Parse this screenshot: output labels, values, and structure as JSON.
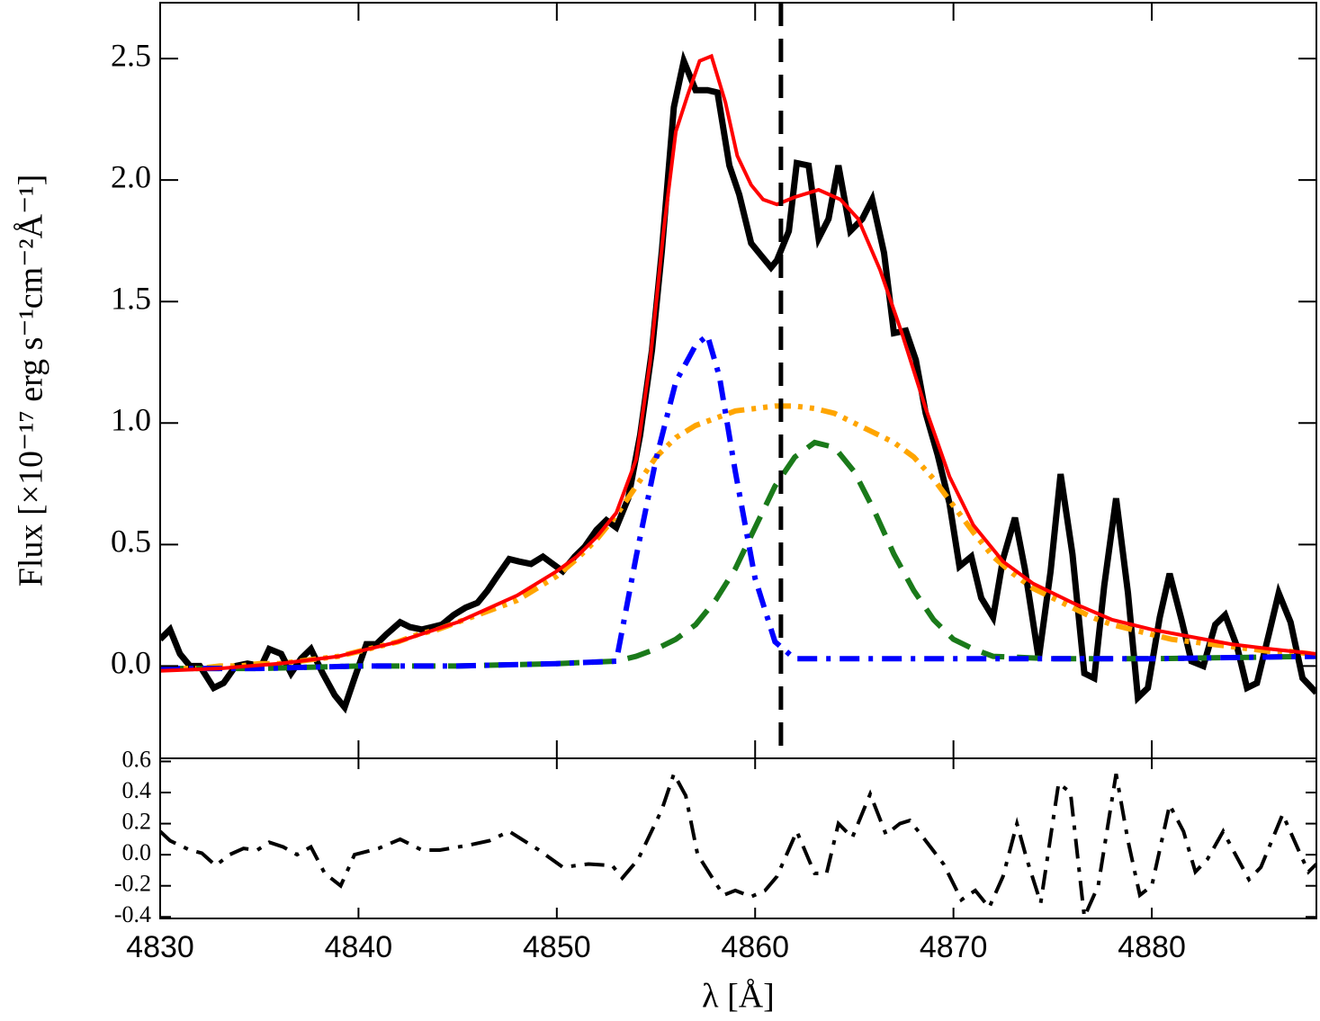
{
  "chart_data": [
    {
      "type": "line",
      "ylabel": "Flux [×10⁻¹⁷ erg s⁻¹cm⁻²Å⁻¹]",
      "xlim": [
        4830,
        4888.3
      ],
      "ylim": [
        -0.38,
        2.73
      ],
      "xticks": [
        4830,
        4840,
        4850,
        4860,
        4870,
        4880
      ],
      "xtick_labels": false,
      "yticks": [
        {
          "value": 0,
          "label": "0.0"
        },
        {
          "value": 0.5,
          "label": "0.5"
        },
        {
          "value": 1,
          "label": "1.0"
        },
        {
          "value": 1.5,
          "label": "1.5"
        },
        {
          "value": 2,
          "label": "2.0"
        },
        {
          "value": 2.5,
          "label": "2.5"
        }
      ],
      "reference_line": {
        "x": 4861.3,
        "style": "dashed",
        "color": "#000000"
      },
      "series": [
        {
          "color": "#000000",
          "style": "solid",
          "x": [
            4830.0,
            4830.5,
            4831.0,
            4831.5,
            4832.0,
            4832.7,
            4833.2,
            4833.8,
            4834.4,
            4835.1,
            4835.5,
            4836.1,
            4836.6,
            4837.1,
            4837.6,
            4838.2,
            4838.8,
            4839.3,
            4839.8,
            4840.4,
            4840.9,
            4841.4,
            4842.1,
            4842.6,
            4843.2,
            4843.7,
            4844.2,
            4844.8,
            4845.4,
            4846.0,
            4846.5,
            4847.0,
            4847.6,
            4848.1,
            4848.7,
            4849.3,
            4849.8,
            4850.3,
            4850.9,
            4851.4,
            4852.0,
            4852.5,
            4853.0,
            4853.6,
            4854.2,
            4854.8,
            4855.3,
            4855.9,
            4856.4,
            4857.0,
            4857.6,
            4858.1,
            4858.7,
            4859.2,
            4859.8,
            4860.3,
            4860.8,
            4861.1,
            4861.7,
            4862.1,
            4862.7,
            4863.2,
            4863.7,
            4864.2,
            4864.8,
            4865.4,
            4865.9,
            4866.5,
            4867.0,
            4867.6,
            4868.1,
            4868.6,
            4869.2,
            4869.8,
            4870.3,
            4870.9,
            4871.4,
            4872.0,
            4872.5,
            4873.1,
            4873.6,
            4874.3,
            4874.9,
            4875.4,
            4876.0,
            4876.6,
            4877.1,
            4877.6,
            4878.2,
            4878.8,
            4879.3,
            4879.8,
            4880.4,
            4880.9,
            4881.5,
            4882.0,
            4882.6,
            4883.2,
            4883.7,
            4884.3,
            4884.8,
            4885.3,
            4885.9,
            4886.4,
            4887.0,
            4887.6,
            4888.3
          ],
          "values": [
            0.11,
            0.15,
            0.05,
            0.0,
            0.0,
            -0.09,
            -0.07,
            0.0,
            0.01,
            0.0,
            0.07,
            0.05,
            -0.03,
            0.03,
            0.07,
            -0.03,
            -0.12,
            -0.17,
            -0.05,
            0.09,
            0.09,
            0.13,
            0.18,
            0.16,
            0.15,
            0.16,
            0.17,
            0.21,
            0.24,
            0.26,
            0.31,
            0.37,
            0.44,
            0.43,
            0.42,
            0.45,
            0.42,
            0.39,
            0.45,
            0.49,
            0.56,
            0.6,
            0.57,
            0.69,
            0.95,
            1.3,
            1.71,
            2.3,
            2.49,
            2.37,
            2.37,
            2.36,
            2.06,
            1.94,
            1.74,
            1.69,
            1.64,
            1.67,
            1.79,
            2.07,
            2.06,
            1.76,
            1.84,
            2.06,
            1.79,
            1.84,
            1.92,
            1.7,
            1.37,
            1.38,
            1.26,
            1.04,
            0.87,
            0.67,
            0.41,
            0.45,
            0.28,
            0.2,
            0.44,
            0.61,
            0.4,
            0.03,
            0.39,
            0.79,
            0.46,
            -0.03,
            -0.05,
            0.33,
            0.69,
            0.3,
            -0.13,
            -0.09,
            0.2,
            0.38,
            0.19,
            0.02,
            0.0,
            0.17,
            0.21,
            0.08,
            -0.09,
            -0.07,
            0.13,
            0.3,
            0.18,
            -0.05,
            -0.11
          ]
        },
        {
          "color": "#ffa500",
          "style": "dashdotdot",
          "x": [
            4830,
            4831,
            4832,
            4833,
            4834,
            4835,
            4836,
            4837,
            4838,
            4839,
            4840,
            4841,
            4842,
            4843,
            4844,
            4845,
            4846,
            4847,
            4848,
            4849,
            4850,
            4851,
            4852,
            4853,
            4854,
            4855,
            4856,
            4857,
            4858,
            4859,
            4860,
            4861,
            4862,
            4863,
            4864,
            4865,
            4866,
            4867,
            4868,
            4869,
            4870,
            4871,
            4872,
            4873,
            4874,
            4875,
            4876,
            4877,
            4878,
            4879,
            4880,
            4881,
            4882,
            4883,
            4884,
            4885,
            4886,
            4887,
            4888
          ],
          "values": [
            -0.01,
            -0.01,
            -0.01,
            0.0,
            0.0,
            0.01,
            0.01,
            0.02,
            0.03,
            0.04,
            0.06,
            0.08,
            0.1,
            0.13,
            0.15,
            0.18,
            0.21,
            0.24,
            0.27,
            0.32,
            0.37,
            0.44,
            0.52,
            0.62,
            0.74,
            0.86,
            0.94,
            0.99,
            1.02,
            1.05,
            1.06,
            1.07,
            1.07,
            1.06,
            1.04,
            1.0,
            0.96,
            0.92,
            0.86,
            0.77,
            0.66,
            0.55,
            0.45,
            0.38,
            0.32,
            0.28,
            0.24,
            0.2,
            0.17,
            0.15,
            0.13,
            0.11,
            0.1,
            0.09,
            0.08,
            0.07,
            0.06,
            0.06,
            0.05
          ]
        },
        {
          "color": "#1a7a1a",
          "style": "dashed",
          "x": [
            4830,
            4835,
            4840,
            4845,
            4850,
            4853,
            4854,
            4855,
            4856,
            4857,
            4858,
            4859,
            4860,
            4861,
            4862,
            4863,
            4864,
            4865,
            4866,
            4867,
            4868,
            4869,
            4870,
            4871,
            4872,
            4875,
            4880,
            4888.3
          ],
          "values": [
            -0.01,
            -0.01,
            0.0,
            0.0,
            0.01,
            0.02,
            0.04,
            0.07,
            0.11,
            0.17,
            0.27,
            0.4,
            0.57,
            0.74,
            0.86,
            0.92,
            0.9,
            0.8,
            0.64,
            0.46,
            0.31,
            0.19,
            0.11,
            0.07,
            0.04,
            0.03,
            0.03,
            0.04
          ]
        },
        {
          "color": "#0000ff",
          "style": "dashdot",
          "x": [
            4830,
            4835,
            4840,
            4845,
            4850,
            4853,
            4854,
            4855,
            4856,
            4857,
            4857.6,
            4858.2,
            4859,
            4860,
            4861,
            4862,
            4870,
            4880,
            4888.3
          ],
          "values": [
            -0.01,
            -0.01,
            0.0,
            0.0,
            0.01,
            0.02,
            0.45,
            0.85,
            1.17,
            1.32,
            1.36,
            1.19,
            0.8,
            0.36,
            0.1,
            0.03,
            0.03,
            0.03,
            0.04
          ]
        },
        {
          "color": "#ff0000",
          "style": "solid",
          "x": [
            4830,
            4833,
            4836,
            4839,
            4842,
            4845,
            4848,
            4850,
            4851,
            4852,
            4853,
            4854,
            4854.7,
            4855.4,
            4856,
            4856.6,
            4857.2,
            4857.8,
            4858.5,
            4859.1,
            4859.8,
            4860.4,
            4861.1,
            4862,
            4863.2,
            4864.3,
            4865.2,
            4866.3,
            4867.4,
            4868.6,
            4869.8,
            4871,
            4872.5,
            4874,
            4876,
            4878,
            4880,
            4882,
            4884,
            4886,
            4888.3
          ],
          "values": [
            -0.02,
            -0.01,
            0.01,
            0.04,
            0.1,
            0.18,
            0.29,
            0.39,
            0.45,
            0.53,
            0.63,
            0.85,
            1.25,
            1.8,
            2.2,
            2.35,
            2.49,
            2.51,
            2.32,
            2.1,
            1.98,
            1.92,
            1.9,
            1.93,
            1.96,
            1.92,
            1.84,
            1.63,
            1.37,
            1.06,
            0.78,
            0.58,
            0.43,
            0.34,
            0.26,
            0.19,
            0.15,
            0.12,
            0.09,
            0.07,
            0.05
          ]
        }
      ]
    },
    {
      "type": "line",
      "xlabel": "λ [Å]",
      "xlim": [
        4830,
        4888.3
      ],
      "ylim": [
        -0.41,
        0.62
      ],
      "xticks": [
        4830,
        4840,
        4850,
        4860,
        4870,
        4880
      ],
      "yticks": [
        0.6,
        0.4,
        0.2,
        {
          "value": 0,
          "label": "0.0"
        },
        -0.2,
        -0.4
      ],
      "series": [
        {
          "color": "#000000",
          "style": "dashdot",
          "x": [
            4830.0,
            4830.5,
            4831.5,
            4832.1,
            4832.8,
            4833.5,
            4834.2,
            4834.9,
            4835.5,
            4836.2,
            4836.9,
            4837.6,
            4838.3,
            4839.1,
            4839.8,
            4841.0,
            4842.1,
            4843.2,
            4844.1,
            4845.5,
            4846.6,
            4847.6,
            4849.1,
            4850.3,
            4851.6,
            4852.8,
            4853.3,
            4854.1,
            4855.3,
            4855.9,
            4856.5,
            4857.1,
            4857.8,
            4858.4,
            4859.0,
            4859.8,
            4860.5,
            4861.1,
            4862.1,
            4863.0,
            4863.6,
            4864.2,
            4864.9,
            4865.8,
            4866.6,
            4867.3,
            4867.8,
            4868.6,
            4869.5,
            4870.4,
            4871.1,
            4871.8,
            4872.5,
            4873.2,
            4873.7,
            4874.4,
            4875.3,
            4875.9,
            4876.6,
            4877.3,
            4878.2,
            4878.8,
            4879.4,
            4880.0,
            4880.9,
            4881.6,
            4882.2,
            4882.8,
            4883.6,
            4884.1,
            4884.9,
            4885.5,
            4886.6,
            4887.5,
            4887.9,
            4888.3
          ],
          "values": [
            0.15,
            0.09,
            0.03,
            0.01,
            -0.07,
            0.0,
            0.04,
            0.03,
            0.08,
            0.05,
            0.0,
            0.05,
            -0.12,
            -0.2,
            0.0,
            0.04,
            0.1,
            0.03,
            0.03,
            0.06,
            0.09,
            0.15,
            0.03,
            -0.08,
            -0.06,
            -0.07,
            -0.15,
            -0.03,
            0.29,
            0.52,
            0.38,
            0.0,
            -0.14,
            -0.26,
            -0.23,
            -0.27,
            -0.23,
            -0.14,
            0.15,
            -0.12,
            -0.12,
            0.2,
            0.11,
            0.39,
            0.13,
            0.2,
            0.22,
            0.09,
            -0.06,
            -0.29,
            -0.23,
            -0.34,
            -0.14,
            0.2,
            -0.03,
            -0.31,
            0.46,
            0.4,
            -0.4,
            -0.2,
            0.52,
            0.09,
            -0.26,
            -0.2,
            0.32,
            0.15,
            -0.11,
            -0.03,
            0.15,
            0.03,
            -0.16,
            -0.08,
            0.26,
            0.0,
            -0.11,
            -0.06
          ]
        }
      ]
    }
  ]
}
